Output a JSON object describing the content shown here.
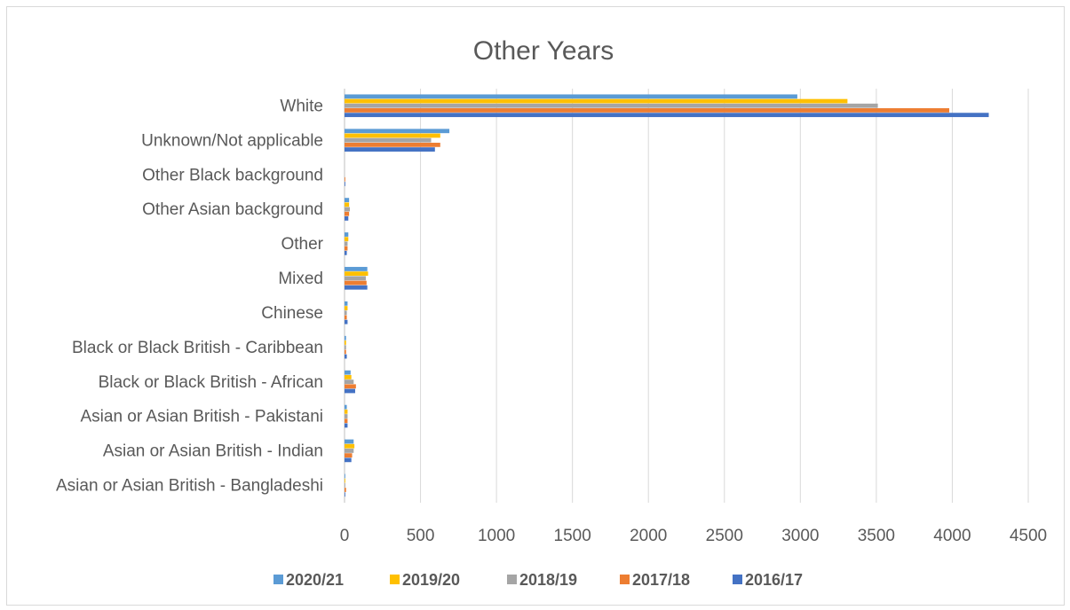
{
  "chart_data": {
    "type": "bar",
    "orientation": "horizontal",
    "title": "Other Years",
    "xlabel": "",
    "ylabel": "",
    "xlim": [
      0,
      4500
    ],
    "x_ticks": [
      "0",
      "500",
      "1000",
      "1500",
      "2000",
      "2500",
      "3000",
      "3500",
      "4000",
      "4500"
    ],
    "grid": true,
    "legend_position": "bottom",
    "categories": [
      "White",
      "Unknown/Not applicable",
      "Other Black background",
      "Other Asian background",
      "Other",
      "Mixed",
      "Chinese",
      "Black or Black British - Caribbean",
      "Black or Black British - African",
      "Asian or Asian British - Pakistani",
      "Asian or Asian British - Indian",
      "Asian or Asian British - Bangladeshi"
    ],
    "series": [
      {
        "name": "2020/21",
        "color": "#5B9BD5",
        "values": [
          2980,
          690,
          0,
          30,
          25,
          150,
          20,
          10,
          40,
          15,
          60,
          5
        ]
      },
      {
        "name": "2019/20",
        "color": "#FFC000",
        "values": [
          3310,
          630,
          0,
          30,
          25,
          155,
          20,
          10,
          45,
          20,
          65,
          5
        ]
      },
      {
        "name": "2018/19",
        "color": "#A5A5A5",
        "values": [
          3510,
          570,
          0,
          35,
          20,
          140,
          15,
          10,
          60,
          20,
          60,
          5
        ]
      },
      {
        "name": "2017/18",
        "color": "#ED7D31",
        "values": [
          3980,
          630,
          5,
          30,
          20,
          145,
          15,
          10,
          75,
          20,
          50,
          10
        ]
      },
      {
        "name": "2016/17",
        "color": "#4472C4",
        "values": [
          4240,
          595,
          5,
          25,
          15,
          150,
          20,
          15,
          70,
          20,
          45,
          5
        ]
      }
    ]
  }
}
